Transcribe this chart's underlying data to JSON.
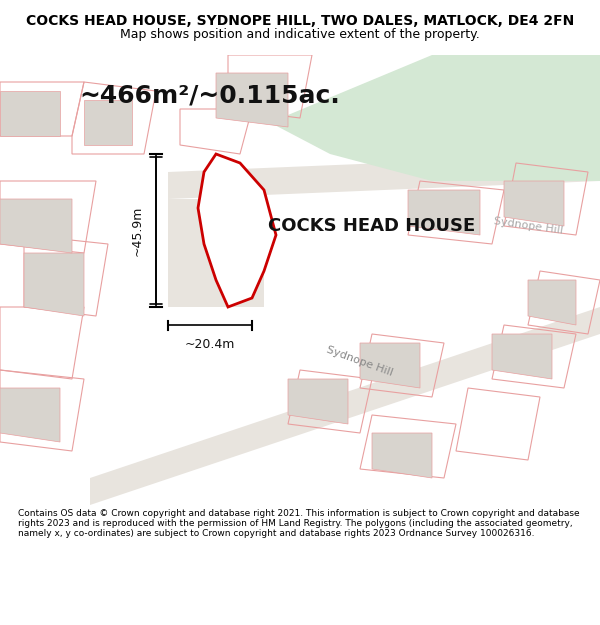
{
  "title": "COCKS HEAD HOUSE, SYDNOPE HILL, TWO DALES, MATLOCK, DE4 2FN",
  "subtitle": "Map shows position and indicative extent of the property.",
  "area_label": "~466m²/~0.115ac.",
  "property_label": "COCKS HEAD HOUSE",
  "dim_vertical": "~45.9m",
  "dim_horizontal": "~20.4m",
  "road_label1": "Sydnope Hill",
  "road_label2": "Sydnope Hill",
  "footer": "Contains OS data © Crown copyright and database right 2021. This information is subject to Crown copyright and database rights 2023 and is reproduced with the permission of HM Land Registry. The polygons (including the associated geometry, namely x, y co-ordinates) are subject to Crown copyright and database rights 2023 Ordnance Survey 100026316.",
  "bg_color": "#f5f5f0",
  "map_bg": "#f0ede8",
  "road_color": "#e8e4de",
  "green_area_color": "#d4e8d4",
  "building_fill": "#d8d4ce",
  "property_fill": "#ffffff",
  "property_edge": "#cc0000",
  "dim_line_color": "#000000",
  "other_prop_edge": "#e8a0a0",
  "title_fontsize": 10,
  "subtitle_fontsize": 9,
  "area_fontsize": 18,
  "prop_label_fontsize": 13
}
